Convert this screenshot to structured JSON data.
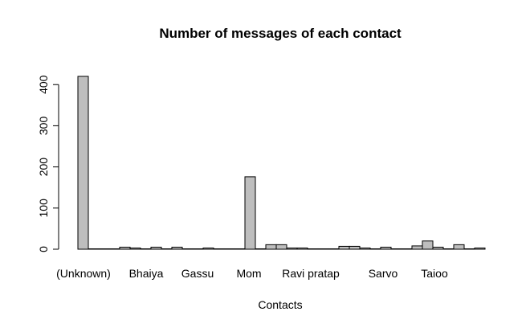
{
  "chart_data": {
    "type": "bar",
    "title": "Number of messages of each contact",
    "xlabel": "Contacts",
    "ylabel": "",
    "ylim": [
      0,
      420
    ],
    "yticks": [
      0,
      100,
      200,
      300,
      400
    ],
    "grid": false,
    "legend": "none",
    "bar_color": "#bebebe",
    "visible_category_labels": [
      {
        "index": 0,
        "label": "(Unknown)"
      },
      {
        "index": 4,
        "label": "Bhaiya"
      },
      {
        "index": 8,
        "label": "Gassu"
      },
      {
        "index": 16,
        "label": "Mom"
      },
      {
        "index": 20,
        "label": "Ravi pratap"
      },
      {
        "index": 28,
        "label": "Sarvo"
      },
      {
        "index": 33,
        "label": "Taioo"
      }
    ],
    "values": [
      420,
      1,
      1,
      1,
      5,
      3,
      1,
      5,
      1,
      5,
      1,
      1,
      3,
      1,
      1,
      1,
      176,
      1,
      11,
      11,
      3,
      3,
      1,
      1,
      1,
      7,
      7,
      3,
      1,
      5,
      1,
      1,
      8,
      20,
      5,
      1,
      11,
      1,
      3
    ]
  }
}
